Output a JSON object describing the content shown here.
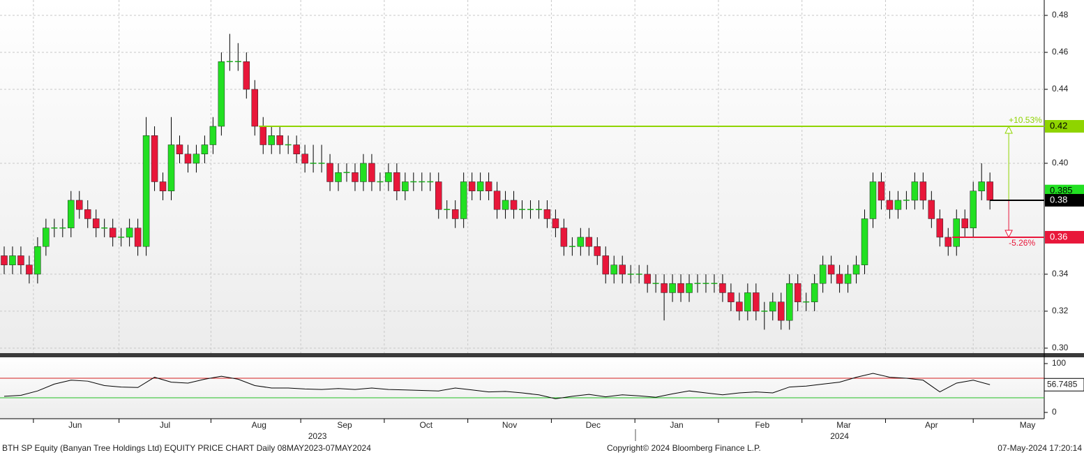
{
  "chart_data": {
    "type": "candlestick",
    "title": "BTH SP Equity (Banyan Tree Holdings Ltd) EQUITY PRICE CHART  Daily 08MAY2023-07MAY2024",
    "copyright": "Copyright© 2024 Bloomberg Finance L.P.",
    "timestamp": "07-May-2024 17:20:14",
    "up_color": "#22e022",
    "down_color": "#e8173a",
    "x": [
      0,
      2,
      4,
      6,
      8,
      10,
      12,
      14,
      16,
      18,
      20,
      22,
      24,
      26,
      28,
      30,
      32,
      34,
      36,
      38,
      40,
      42,
      44,
      46,
      48,
      50,
      52,
      54,
      56,
      58,
      60,
      62,
      64,
      66,
      68,
      70,
      72,
      74,
      76,
      78,
      80,
      82,
      84,
      86,
      88,
      90,
      92,
      94,
      96,
      98,
      100,
      102,
      104,
      106,
      108,
      110,
      112,
      114,
      116,
      118,
      120,
      122,
      124,
      126,
      128,
      130,
      132,
      134,
      136,
      138,
      140,
      142,
      144,
      146,
      148,
      150,
      152,
      154,
      156,
      158,
      160,
      162,
      164,
      166,
      168,
      170,
      172,
      174,
      176,
      178,
      180,
      182,
      184,
      186,
      188,
      190,
      192,
      194,
      196,
      198,
      200,
      202,
      204,
      206,
      208,
      210,
      212,
      214,
      216,
      218,
      220,
      222,
      224,
      226,
      228,
      230,
      232,
      234,
      236
    ],
    "open": [
      0.35,
      0.345,
      0.35,
      0.345,
      0.34,
      0.355,
      0.365,
      0.365,
      0.365,
      0.38,
      0.375,
      0.37,
      0.365,
      0.365,
      0.36,
      0.36,
      0.365,
      0.355,
      0.415,
      0.39,
      0.385,
      0.41,
      0.405,
      0.4,
      0.405,
      0.41,
      0.42,
      0.455,
      0.455,
      0.455,
      0.44,
      0.42,
      0.41,
      0.415,
      0.41,
      0.41,
      0.405,
      0.4,
      0.4,
      0.4,
      0.39,
      0.395,
      0.395,
      0.39,
      0.4,
      0.39,
      0.39,
      0.395,
      0.385,
      0.39,
      0.39,
      0.39,
      0.39,
      0.375,
      0.375,
      0.37,
      0.39,
      0.385,
      0.39,
      0.385,
      0.375,
      0.38,
      0.375,
      0.375,
      0.375,
      0.375,
      0.37,
      0.365,
      0.355,
      0.355,
      0.36,
      0.355,
      0.35,
      0.34,
      0.345,
      0.34,
      0.34,
      0.34,
      0.335,
      0.335,
      0.33,
      0.335,
      0.33,
      0.335,
      0.335,
      0.335,
      0.335,
      0.33,
      0.325,
      0.32,
      0.33,
      0.32,
      0.32,
      0.325,
      0.315,
      0.335,
      0.325,
      0.325,
      0.335,
      0.345,
      0.34,
      0.335,
      0.34,
      0.345,
      0.37,
      0.39,
      0.38,
      0.375,
      0.38,
      0.38,
      0.39,
      0.38,
      0.37,
      0.36,
      0.355,
      0.37,
      0.365,
      0.385,
      0.39
    ],
    "high": [
      0.355,
      0.355,
      0.355,
      0.35,
      0.36,
      0.37,
      0.37,
      0.37,
      0.385,
      0.385,
      0.38,
      0.375,
      0.37,
      0.37,
      0.365,
      0.37,
      0.37,
      0.425,
      0.42,
      0.395,
      0.425,
      0.415,
      0.41,
      0.41,
      0.415,
      0.425,
      0.46,
      0.47,
      0.465,
      0.46,
      0.445,
      0.425,
      0.42,
      0.42,
      0.415,
      0.415,
      0.41,
      0.41,
      0.41,
      0.405,
      0.4,
      0.4,
      0.4,
      0.405,
      0.405,
      0.395,
      0.4,
      0.4,
      0.395,
      0.395,
      0.395,
      0.395,
      0.395,
      0.38,
      0.38,
      0.395,
      0.395,
      0.395,
      0.395,
      0.39,
      0.385,
      0.385,
      0.38,
      0.38,
      0.38,
      0.38,
      0.375,
      0.37,
      0.36,
      0.365,
      0.365,
      0.36,
      0.355,
      0.35,
      0.35,
      0.345,
      0.345,
      0.345,
      0.34,
      0.34,
      0.34,
      0.34,
      0.34,
      0.34,
      0.34,
      0.34,
      0.34,
      0.335,
      0.33,
      0.335,
      0.335,
      0.325,
      0.33,
      0.33,
      0.34,
      0.34,
      0.33,
      0.34,
      0.35,
      0.35,
      0.345,
      0.345,
      0.35,
      0.375,
      0.395,
      0.395,
      0.385,
      0.385,
      0.385,
      0.395,
      0.395,
      0.385,
      0.375,
      0.365,
      0.375,
      0.375,
      0.39,
      0.4,
      0.395
    ],
    "low": [
      0.34,
      0.34,
      0.34,
      0.335,
      0.335,
      0.35,
      0.36,
      0.36,
      0.36,
      0.37,
      0.365,
      0.36,
      0.36,
      0.355,
      0.355,
      0.355,
      0.35,
      0.35,
      0.385,
      0.38,
      0.38,
      0.4,
      0.395,
      0.395,
      0.4,
      0.405,
      0.415,
      0.45,
      0.45,
      0.435,
      0.415,
      0.405,
      0.405,
      0.405,
      0.405,
      0.4,
      0.395,
      0.395,
      0.395,
      0.385,
      0.385,
      0.39,
      0.385,
      0.385,
      0.385,
      0.385,
      0.385,
      0.38,
      0.38,
      0.385,
      0.385,
      0.385,
      0.37,
      0.37,
      0.365,
      0.365,
      0.38,
      0.38,
      0.38,
      0.37,
      0.37,
      0.37,
      0.37,
      0.37,
      0.37,
      0.365,
      0.36,
      0.35,
      0.35,
      0.35,
      0.35,
      0.345,
      0.335,
      0.335,
      0.335,
      0.335,
      0.335,
      0.33,
      0.33,
      0.315,
      0.325,
      0.325,
      0.325,
      0.33,
      0.33,
      0.33,
      0.325,
      0.32,
      0.315,
      0.315,
      0.315,
      0.31,
      0.315,
      0.31,
      0.31,
      0.32,
      0.32,
      0.32,
      0.33,
      0.335,
      0.33,
      0.33,
      0.335,
      0.34,
      0.365,
      0.375,
      0.37,
      0.37,
      0.375,
      0.375,
      0.375,
      0.365,
      0.355,
      0.35,
      0.35,
      0.36,
      0.36,
      0.38,
      0.375
    ],
    "close": [
      0.345,
      0.35,
      0.345,
      0.34,
      0.355,
      0.365,
      0.365,
      0.365,
      0.38,
      0.375,
      0.37,
      0.365,
      0.365,
      0.36,
      0.36,
      0.365,
      0.355,
      0.415,
      0.39,
      0.385,
      0.41,
      0.405,
      0.4,
      0.405,
      0.41,
      0.42,
      0.455,
      0.455,
      0.455,
      0.44,
      0.42,
      0.41,
      0.415,
      0.41,
      0.41,
      0.405,
      0.4,
      0.4,
      0.4,
      0.39,
      0.395,
      0.395,
      0.39,
      0.4,
      0.39,
      0.39,
      0.395,
      0.385,
      0.39,
      0.39,
      0.39,
      0.39,
      0.375,
      0.375,
      0.37,
      0.39,
      0.385,
      0.39,
      0.385,
      0.375,
      0.38,
      0.375,
      0.375,
      0.375,
      0.375,
      0.37,
      0.365,
      0.355,
      0.355,
      0.36,
      0.355,
      0.35,
      0.34,
      0.345,
      0.34,
      0.34,
      0.34,
      0.335,
      0.335,
      0.33,
      0.335,
      0.33,
      0.335,
      0.335,
      0.335,
      0.335,
      0.33,
      0.325,
      0.32,
      0.33,
      0.32,
      0.32,
      0.325,
      0.315,
      0.335,
      0.325,
      0.325,
      0.335,
      0.345,
      0.34,
      0.335,
      0.34,
      0.345,
      0.37,
      0.39,
      0.38,
      0.375,
      0.38,
      0.38,
      0.39,
      0.38,
      0.37,
      0.36,
      0.355,
      0.37,
      0.365,
      0.385,
      0.39,
      0.38
    ],
    "xlim": [
      -1,
      249
    ],
    "ylim": [
      0.2977,
      0.4853
    ],
    "yticks": [
      {
        "value": 0.3,
        "label": "0.30"
      },
      0.32,
      0.34,
      {
        "value": 0.4,
        "label": "0.40"
      },
      0.44,
      0.46,
      0.48
    ],
    "xticks": [
      {
        "value": 17,
        "label": "Jun"
      },
      {
        "value": 38.5,
        "label": "Jul"
      },
      {
        "value": 61,
        "label": "Aug"
      },
      {
        "value": 81.5,
        "label": "Sep"
      },
      {
        "value": 101,
        "label": "Oct"
      },
      {
        "value": 121,
        "label": "Nov"
      },
      {
        "value": 141,
        "label": "Dec"
      },
      {
        "value": 161,
        "label": "Jan"
      },
      {
        "value": 181.5,
        "label": "Feb"
      },
      {
        "value": 201,
        "label": "Mar"
      },
      {
        "value": 222,
        "label": "Apr"
      },
      {
        "value": 245,
        "label": "May"
      }
    ],
    "xgrid": [
      7,
      27.5,
      49.5,
      71,
      91,
      111,
      131,
      151,
      171,
      191,
      211,
      232
    ],
    "year_labels": [
      {
        "value": 75,
        "label": "2023"
      },
      {
        "value": 200,
        "label": "2024"
      }
    ],
    "grid": true,
    "levels": [
      {
        "value": 0.42,
        "start": 61,
        "color": "#8fd400",
        "change": "+10.53%"
      },
      {
        "value": 0.36,
        "start": 227,
        "color": "#e8173a",
        "change": "-5.26%"
      }
    ],
    "last_price": {
      "value": 0.38,
      "start": 236,
      "color": "#000000"
    },
    "price_tag": {
      "value": 0.385,
      "color": "#22e022"
    },
    "arrow_x": 240.5,
    "rsi": {
      "type": "line",
      "color": "#000000",
      "x": [
        0,
        4,
        8,
        12,
        16,
        20,
        24,
        28,
        32,
        36,
        40,
        44,
        48,
        52,
        56,
        60,
        64,
        68,
        72,
        76,
        80,
        84,
        88,
        92,
        96,
        100,
        104,
        108,
        112,
        116,
        120,
        124,
        128,
        132,
        136,
        140,
        144,
        148,
        152,
        156,
        160,
        164,
        168,
        172,
        176,
        180,
        184,
        188,
        192,
        196,
        200,
        204,
        208,
        212,
        216,
        220,
        224,
        228,
        232,
        236
      ],
      "values": [
        33,
        35,
        44,
        58,
        66,
        64,
        55,
        52,
        51,
        72,
        62,
        60,
        68,
        74,
        68,
        55,
        50,
        50,
        48,
        47,
        49,
        47,
        50,
        47,
        46,
        45,
        44,
        50,
        46,
        42,
        43,
        40,
        36,
        28,
        33,
        37,
        32,
        36,
        34,
        31,
        38,
        44,
        40,
        36,
        40,
        42,
        40,
        52,
        54,
        58,
        62,
        72,
        80,
        72,
        70,
        66,
        42,
        60,
        66,
        56.7485
      ],
      "ylim": [
        -10,
        111.4
      ],
      "yticks": [
        0,
        100
      ],
      "upper": {
        "value": 70,
        "color": "#d42020"
      },
      "lower": {
        "value": 30,
        "color": "#22c022"
      }
    }
  }
}
